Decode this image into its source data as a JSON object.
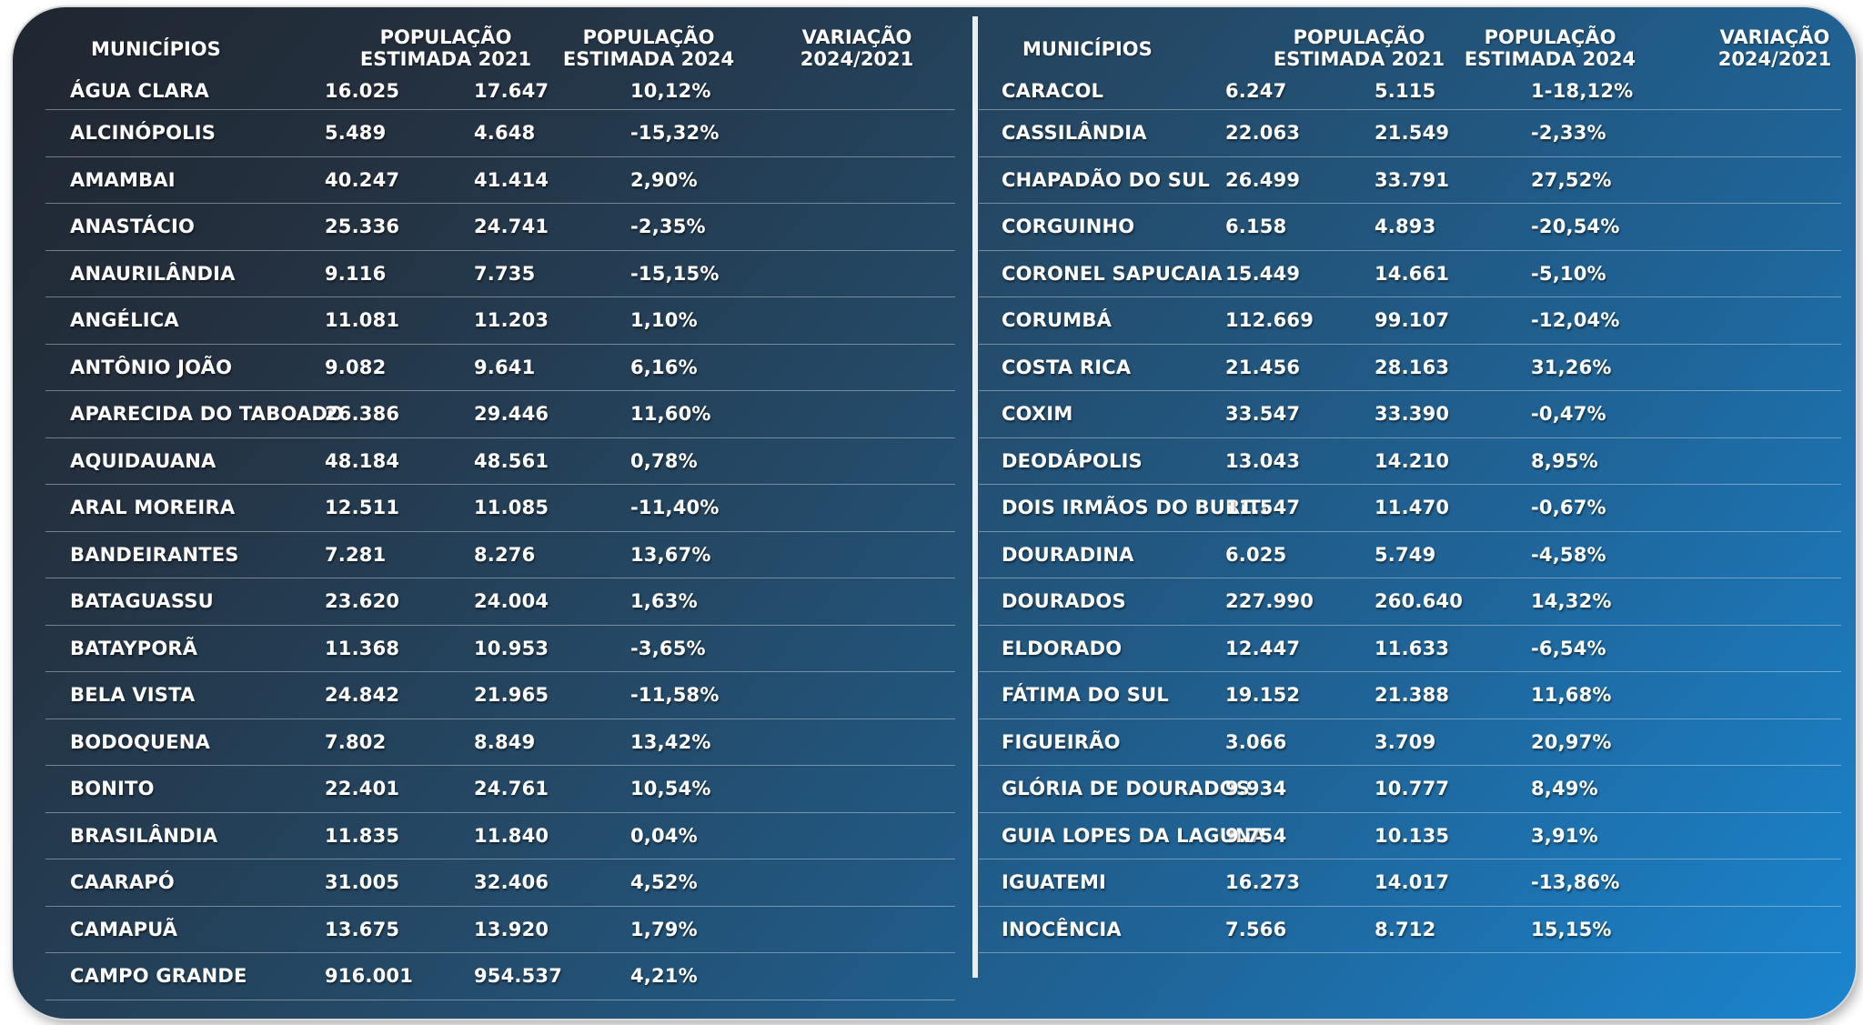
{
  "headers": {
    "municipio": "MUNICÍPIOS",
    "pop2021": [
      "POPULAÇÃO",
      "ESTIMADA 2021"
    ],
    "pop2024": [
      "POPULAÇÃO",
      "ESTIMADA 2024"
    ],
    "variacao": [
      "VARIAÇÃO",
      "2024/2021"
    ]
  },
  "left_rows": [
    [
      "ÁGUA CLARA",
      "16.025",
      "17.647",
      "10,12%"
    ],
    [
      "ALCINÓPOLIS",
      "5.489",
      "4.648",
      "-15,32%"
    ],
    [
      "AMAMBAI",
      "40.247",
      "41.414",
      "2,90%"
    ],
    [
      "ANASTÁCIO",
      "25.336",
      "24.741",
      "-2,35%"
    ],
    [
      "ANAURILÂNDIA",
      "9.116",
      "7.735",
      "-15,15%"
    ],
    [
      "ANGÉLICA",
      "11.081",
      "11.203",
      "1,10%"
    ],
    [
      "ANTÔNIO JOÃO",
      "9.082",
      "9.641",
      "6,16%"
    ],
    [
      "APARECIDA DO TABOADO",
      "26.386",
      "29.446",
      "11,60%"
    ],
    [
      "AQUIDAUANA",
      "48.184",
      "48.561",
      "0,78%"
    ],
    [
      "ARAL MOREIRA",
      "12.511",
      "11.085",
      "-11,40%"
    ],
    [
      "BANDEIRANTES",
      "7.281",
      "8.276",
      "13,67%"
    ],
    [
      "BATAGUASSU",
      "23.620",
      "24.004",
      "1,63%"
    ],
    [
      "BATAYPORÃ",
      "11.368",
      "10.953",
      "-3,65%"
    ],
    [
      "BELA VISTA",
      "24.842",
      "21.965",
      "-11,58%"
    ],
    [
      "BODOQUENA",
      "7.802",
      "8.849",
      "13,42%"
    ],
    [
      "BONITO",
      "22.401",
      "24.761",
      "10,54%"
    ],
    [
      "BRASILÂNDIA",
      "11.835",
      "11.840",
      "0,04%"
    ],
    [
      "CAARAPÓ",
      "31.005",
      "32.406",
      "4,52%"
    ],
    [
      "CAMAPUÃ",
      "13.675",
      "13.920",
      "1,79%"
    ],
    [
      "CAMPO GRANDE",
      "916.001",
      "954.537",
      "4,21%"
    ]
  ],
  "right_rows": [
    [
      "CARACOL",
      "6.247",
      "5.115",
      "1-18,12%"
    ],
    [
      "CASSILÂNDIA",
      "22.063",
      "21.549",
      "-2,33%"
    ],
    [
      "CHAPADÃO DO SUL",
      "26.499",
      "33.791",
      "27,52%"
    ],
    [
      "CORGUINHO",
      "6.158",
      "4.893",
      "-20,54%"
    ],
    [
      "CORONEL SAPUCAIA",
      "15.449",
      "14.661",
      "-5,10%"
    ],
    [
      "CORUMBÁ",
      "112.669",
      "99.107",
      "-12,04%"
    ],
    [
      "COSTA RICA",
      "21.456",
      "28.163",
      "31,26%"
    ],
    [
      "COXIM",
      "33.547",
      "33.390",
      "-0,47%"
    ],
    [
      "DEODÁPOLIS",
      "13.043",
      "14.210",
      "8,95%"
    ],
    [
      "DOIS IRMÃOS DO BURITI",
      "11.547",
      "11.470",
      "-0,67%"
    ],
    [
      "DOURADINA",
      "6.025",
      "5.749",
      "-4,58%"
    ],
    [
      "DOURADOS",
      "227.990",
      "260.640",
      "14,32%"
    ],
    [
      "ELDORADO",
      "12.447",
      "11.633",
      "-6,54%"
    ],
    [
      "FÁTIMA DO SUL",
      "19.152",
      "21.388",
      "11,68%"
    ],
    [
      "FIGUEIRÃO",
      "3.066",
      "3.709",
      "20,97%"
    ],
    [
      "GLÓRIA DE DOURADOS",
      "9.934",
      "10.777",
      "8,49%"
    ],
    [
      "GUIA LOPES DA LAGUNA",
      "9.754",
      "10.135",
      "3,91%"
    ],
    [
      "IGUATEMI",
      "16.273",
      "14.017",
      "-13,86%"
    ],
    [
      "INOCÊNCIA",
      "7.566",
      "8.712",
      "15,15%"
    ]
  ],
  "colors": {
    "gradient_start": "#1f2630",
    "gradient_end": "#1a85cf",
    "text": "#ffffff",
    "divider": "#e9eef3"
  }
}
